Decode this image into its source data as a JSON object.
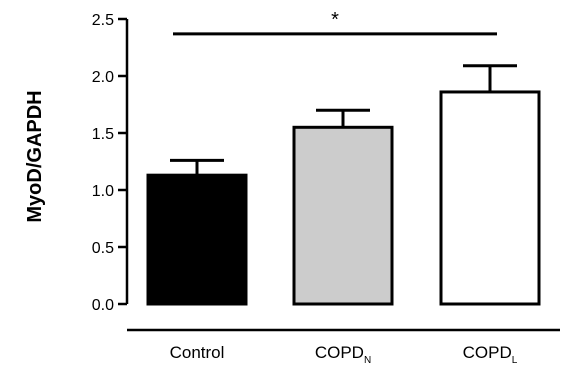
{
  "chart_data": {
    "type": "bar",
    "categories": [
      {
        "label": "Control",
        "base": "Control",
        "sub": ""
      },
      {
        "label": "COPDN",
        "base": "COPD",
        "sub": "N"
      },
      {
        "label": "COPDL",
        "base": "COPD",
        "sub": "L"
      }
    ],
    "values": [
      1.13,
      1.55,
      1.86
    ],
    "errors": [
      0.13,
      0.15,
      0.23
    ],
    "bar_colors": [
      "#000000",
      "#cccccc",
      "#ffffff"
    ],
    "ylabel": "MyoD/GAPDH",
    "xlabel": "",
    "ylim": [
      0,
      2.5
    ],
    "yticks": [
      0.0,
      0.5,
      1.0,
      1.5,
      2.0,
      2.5
    ],
    "ytick_labels": [
      "0.0",
      "0.5",
      "1.0",
      "1.5",
      "2.0",
      "2.5"
    ],
    "grid": false,
    "annotations": [
      {
        "text": "*",
        "from_category": 0,
        "to_category": 2,
        "y": 2.37
      }
    ]
  }
}
